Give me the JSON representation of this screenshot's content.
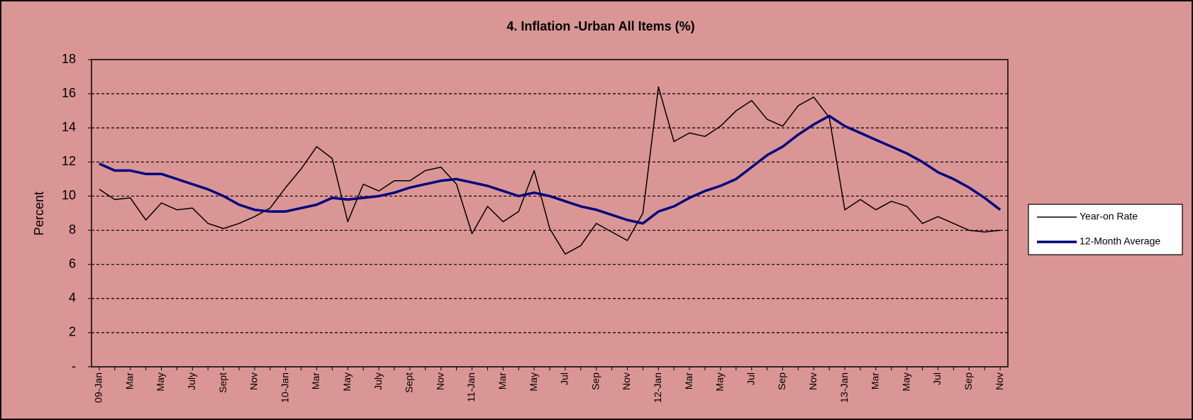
{
  "chart_data": {
    "type": "line",
    "title": "4. Inflation -Urban All Items (%)",
    "y_label": "Percent",
    "categories": [
      "09-Jan",
      null,
      "Mar",
      null,
      "May",
      null,
      "July",
      null,
      "Sept",
      null,
      "Nov",
      null,
      "10-Jan",
      null,
      "Mar",
      null,
      "May",
      null,
      "July",
      null,
      "Sept",
      null,
      "Nov",
      null,
      "11-Jan",
      null,
      "Mar",
      null,
      "May",
      null,
      "Jul",
      null,
      "Sep",
      null,
      "Nov",
      null,
      "12-Jan",
      null,
      "Mar",
      null,
      "May",
      null,
      "Jul",
      null,
      "Sep",
      null,
      "Nov",
      null,
      "13-Jan",
      null,
      "Mar",
      null,
      "May",
      null,
      "Jul",
      null,
      "Sep",
      null,
      "Nov"
    ],
    "series": [
      {
        "name": "Year-on Rate",
        "color": "#000000",
        "width": 1.5,
        "values": [
          10.4,
          9.8,
          9.9,
          8.6,
          9.6,
          9.2,
          9.3,
          8.4,
          8.1,
          8.4,
          8.8,
          9.3,
          10.5,
          11.6,
          12.9,
          12.2,
          8.5,
          10.7,
          10.3,
          10.9,
          10.9,
          11.5,
          11.7,
          10.7,
          7.8,
          9.4,
          8.5,
          9.1,
          11.5,
          8.1,
          6.6,
          7.1,
          8.4,
          7.9,
          7.4,
          9.0,
          16.4,
          13.2,
          13.7,
          13.5,
          14.1,
          15.0,
          15.6,
          14.5,
          14.1,
          15.3,
          15.8,
          14.6,
          9.2,
          9.8,
          9.2,
          9.7,
          9.4,
          8.4,
          8.8,
          8.4,
          8.0,
          7.9,
          8.0
        ]
      },
      {
        "name": "12-Month Average",
        "color": "#000080",
        "width": 3.5,
        "values": [
          11.9,
          11.5,
          11.5,
          11.3,
          11.3,
          11.0,
          10.7,
          10.4,
          10.0,
          9.5,
          9.2,
          9.1,
          9.1,
          9.3,
          9.5,
          9.9,
          9.8,
          9.9,
          10.0,
          10.2,
          10.5,
          10.7,
          10.9,
          11.0,
          10.8,
          10.6,
          10.3,
          10.0,
          10.2,
          10.0,
          9.7,
          9.4,
          9.2,
          8.9,
          8.6,
          8.4,
          9.1,
          9.4,
          9.9,
          10.3,
          10.6,
          11.0,
          11.7,
          12.4,
          12.9,
          13.6,
          14.2,
          14.7,
          14.1,
          13.7,
          13.3,
          12.9,
          12.5,
          12.0,
          11.4,
          11.0,
          10.5,
          9.9,
          9.2
        ]
      }
    ],
    "ylim": [
      0,
      18
    ],
    "yticks": [
      {
        "value": 0,
        "label": "-"
      },
      2,
      4,
      6,
      8,
      10,
      12,
      14,
      16,
      18
    ],
    "grid": true,
    "legend": "right"
  }
}
